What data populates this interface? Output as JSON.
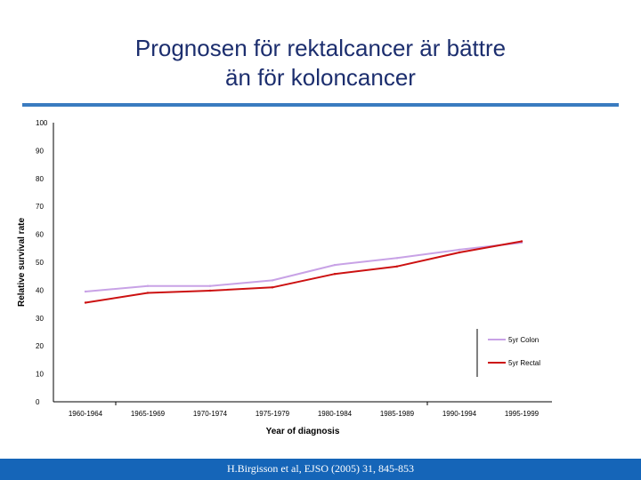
{
  "slide": {
    "title_line1": "Prognosen för rektalcancer är bättre",
    "title_line2": "än för koloncancer",
    "citation": "H.Birgisson et al, EJSO (2005) 31, 845-853"
  },
  "colors": {
    "title": "#1c2e6e",
    "rule": "#3a7bc0",
    "footer": "#1565b8",
    "colon": "#c8a2e6",
    "rectal": "#cc1111"
  },
  "chart_data": {
    "type": "line",
    "title": "",
    "xlabel": "Year of diagnosis",
    "ylabel": "Relative survival rate",
    "ylim": [
      0,
      100
    ],
    "yticks": [
      0,
      10,
      20,
      30,
      40,
      50,
      60,
      70,
      80,
      90,
      100
    ],
    "grid": false,
    "legend_position": "bottom-right",
    "categories": [
      "1960-1964",
      "1965-1969",
      "1970-1974",
      "1975-1979",
      "1980-1984",
      "1985-1989",
      "1990-1994",
      "1995-1999"
    ],
    "series": [
      {
        "name": "5yr Colon",
        "color": "#c8a2e6",
        "values": [
          39.5,
          41.5,
          41.5,
          43.5,
          49,
          51.5,
          54.5,
          57
        ]
      },
      {
        "name": "5yr Rectal",
        "color": "#cc1111",
        "values": [
          35.5,
          39,
          39.8,
          41,
          45.8,
          48.5,
          53.5,
          57.5
        ]
      }
    ]
  }
}
